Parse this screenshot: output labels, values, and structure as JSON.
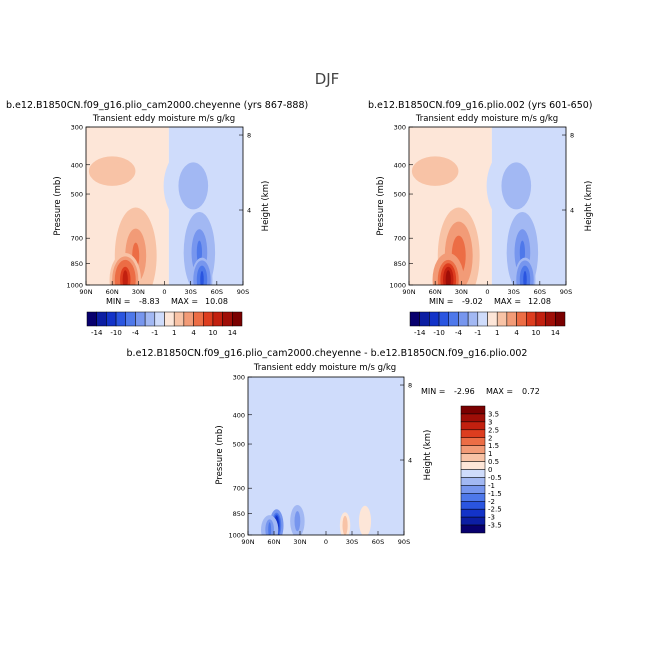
{
  "page_title": "DJF",
  "colors": {
    "neg_scale": [
      "#08006e",
      "#0c1ea3",
      "#1333c8",
      "#2a55e0",
      "#4e78ea",
      "#7796ee",
      "#a2b8f3",
      "#cfdcfb"
    ],
    "pos_scale": [
      "#fde6d8",
      "#f8c3a6",
      "#f29b77",
      "#ec6d45",
      "#dd3d1f",
      "#c2200f",
      "#9f0e07",
      "#7a0000"
    ],
    "zero_band": "#f2f2f2"
  },
  "chart_data": [
    {
      "type": "heatmap",
      "title": "b.e12.B1850CN.f09_g16.plio_cam2000.cheyenne (yrs 867-888)",
      "subtitle": "Transient eddy moisture m/s g/kg",
      "xlabel": "",
      "ylabel": "Pressure (mb)",
      "y2label": "Height (km)",
      "x_ticks": [
        "90N",
        "60N",
        "30N",
        "0",
        "30S",
        "60S",
        "90S"
      ],
      "x_tick_values": [
        90,
        60,
        30,
        0,
        -30,
        -60,
        -90
      ],
      "y_ticks": [
        "300",
        "400",
        "500",
        "700",
        "850",
        "1000"
      ],
      "y_tick_values": [
        300,
        400,
        500,
        700,
        850,
        1000
      ],
      "y2_ticks": [
        "8",
        "4"
      ],
      "y2_tick_values": [
        8,
        4
      ],
      "ylim": [
        1000,
        300
      ],
      "xlim": [
        90,
        -90
      ],
      "min_label": "MIN =",
      "min_value": "-8.83",
      "max_label": "MAX =",
      "max_value": "10.08",
      "blobs": [
        {
          "lat": 60,
          "p": 420,
          "lat_half": 40,
          "p_top": 380,
          "peak": 3.4
        },
        {
          "lat": 33,
          "p": 800,
          "lat_half": 24,
          "p_top": 580,
          "peak": 6.5
        },
        {
          "lat": 45,
          "p": 960,
          "lat_half": 18,
          "p_top": 820,
          "peak": 10.08
        },
        {
          "lat": -33,
          "p": 470,
          "lat_half": 34,
          "p_top": 360,
          "peak": -3.0
        },
        {
          "lat": -40,
          "p": 780,
          "lat_half": 18,
          "p_top": 600,
          "peak": -6.0
        },
        {
          "lat": -43,
          "p": 960,
          "lat_half": 12,
          "p_top": 850,
          "peak": -8.83
        }
      ]
    },
    {
      "type": "heatmap",
      "title": "b.e12.B1850CN.f09_g16.plio.002 (yrs 601-650)",
      "subtitle": "Transient eddy moisture m/s g/kg",
      "xlabel": "",
      "ylabel": "Pressure (mb)",
      "y2label": "Height (km)",
      "x_ticks": [
        "90N",
        "60N",
        "30N",
        "0",
        "30S",
        "60S",
        "90S"
      ],
      "x_tick_values": [
        90,
        60,
        30,
        0,
        -30,
        -60,
        -90
      ],
      "y_ticks": [
        "300",
        "400",
        "500",
        "700",
        "850",
        "1000"
      ],
      "y_tick_values": [
        300,
        400,
        500,
        700,
        850,
        1000
      ],
      "y2_ticks": [
        "8",
        "4"
      ],
      "y2_tick_values": [
        8,
        4
      ],
      "ylim": [
        1000,
        300
      ],
      "xlim": [
        90,
        -90
      ],
      "min_label": "MIN =",
      "min_value": "-9.02",
      "max_label": "MAX =",
      "max_value": "12.08",
      "blobs": [
        {
          "lat": 60,
          "p": 420,
          "lat_half": 40,
          "p_top": 380,
          "peak": 3.6
        },
        {
          "lat": 33,
          "p": 800,
          "lat_half": 24,
          "p_top": 580,
          "peak": 7.0
        },
        {
          "lat": 45,
          "p": 960,
          "lat_half": 18,
          "p_top": 820,
          "peak": 12.08
        },
        {
          "lat": -33,
          "p": 470,
          "lat_half": 34,
          "p_top": 360,
          "peak": -3.2
        },
        {
          "lat": -40,
          "p": 780,
          "lat_half": 18,
          "p_top": 600,
          "peak": -6.4
        },
        {
          "lat": -43,
          "p": 960,
          "lat_half": 12,
          "p_top": 850,
          "peak": -9.02
        }
      ]
    },
    {
      "type": "heatmap",
      "title": "b.e12.B1850CN.f09_g16.plio_cam2000.cheyenne - b.e12.B1850CN.f09_g16.plio.002",
      "subtitle": "Transient eddy moisture m/s g/kg",
      "xlabel": "",
      "ylabel": "Pressure (mb)",
      "y2label": "Height (km)",
      "x_ticks": [
        "90N",
        "60N",
        "30N",
        "0",
        "30S",
        "60S",
        "90S"
      ],
      "x_tick_values": [
        90,
        60,
        30,
        0,
        -30,
        -60,
        -90
      ],
      "y_ticks": [
        "300",
        "400",
        "500",
        "700",
        "850",
        "1000"
      ],
      "y_tick_values": [
        300,
        400,
        500,
        700,
        850,
        1000
      ],
      "y2_ticks": [
        "8",
        "4"
      ],
      "y2_tick_values": [
        8,
        4
      ],
      "ylim": [
        1000,
        300
      ],
      "xlim": [
        90,
        -90
      ],
      "min_label": "MIN =",
      "min_value": "-2.96",
      "max_label": "MAX =",
      "max_value": "0.72",
      "blobs": [
        {
          "lat": 57,
          "p": 930,
          "lat_half": 8,
          "p_top": 860,
          "peak": -2.96
        },
        {
          "lat": 65,
          "p": 960,
          "lat_half": 10,
          "p_top": 900,
          "peak": -1.6
        },
        {
          "lat": 33,
          "p": 900,
          "lat_half": 10,
          "p_top": 820,
          "peak": -1.2
        },
        {
          "lat": -22,
          "p": 930,
          "lat_half": 6,
          "p_top": 880,
          "peak": 0.72
        },
        {
          "lat": -45,
          "p": 900,
          "lat_half": 14,
          "p_top": 780,
          "peak": 0.4
        },
        {
          "lat": -18,
          "p": 600,
          "lat_half": 4,
          "p_top": 400,
          "peak": 0.2
        },
        {
          "lat": 20,
          "p": 560,
          "lat_half": 4,
          "p_top": 400,
          "peak": 0.2
        },
        {
          "lat": -62,
          "p": 650,
          "lat_half": 4,
          "p_top": 450,
          "peak": 0.2
        }
      ]
    }
  ],
  "colorbars": {
    "top": {
      "labels": [
        "-14",
        "-10",
        "-4",
        "-1",
        "1",
        "4",
        "10",
        "14"
      ],
      "bounds": [
        -14,
        -12,
        -10,
        -8,
        -4,
        -2,
        -1,
        0,
        1,
        2,
        4,
        8,
        10,
        12,
        14
      ]
    },
    "diff": {
      "labels": [
        "3.5",
        "3",
        "2.5",
        "2",
        "1.5",
        "1",
        "0.5",
        "0",
        "-0.5",
        "-1",
        "-1.5",
        "-2",
        "-2.5",
        "-3",
        "-3.5"
      ],
      "bounds": [
        3.5,
        3,
        2.5,
        2,
        1.5,
        1,
        0.5,
        0,
        -0.5,
        -1,
        -1.5,
        -2,
        -2.5,
        -3,
        -3.5
      ]
    }
  }
}
